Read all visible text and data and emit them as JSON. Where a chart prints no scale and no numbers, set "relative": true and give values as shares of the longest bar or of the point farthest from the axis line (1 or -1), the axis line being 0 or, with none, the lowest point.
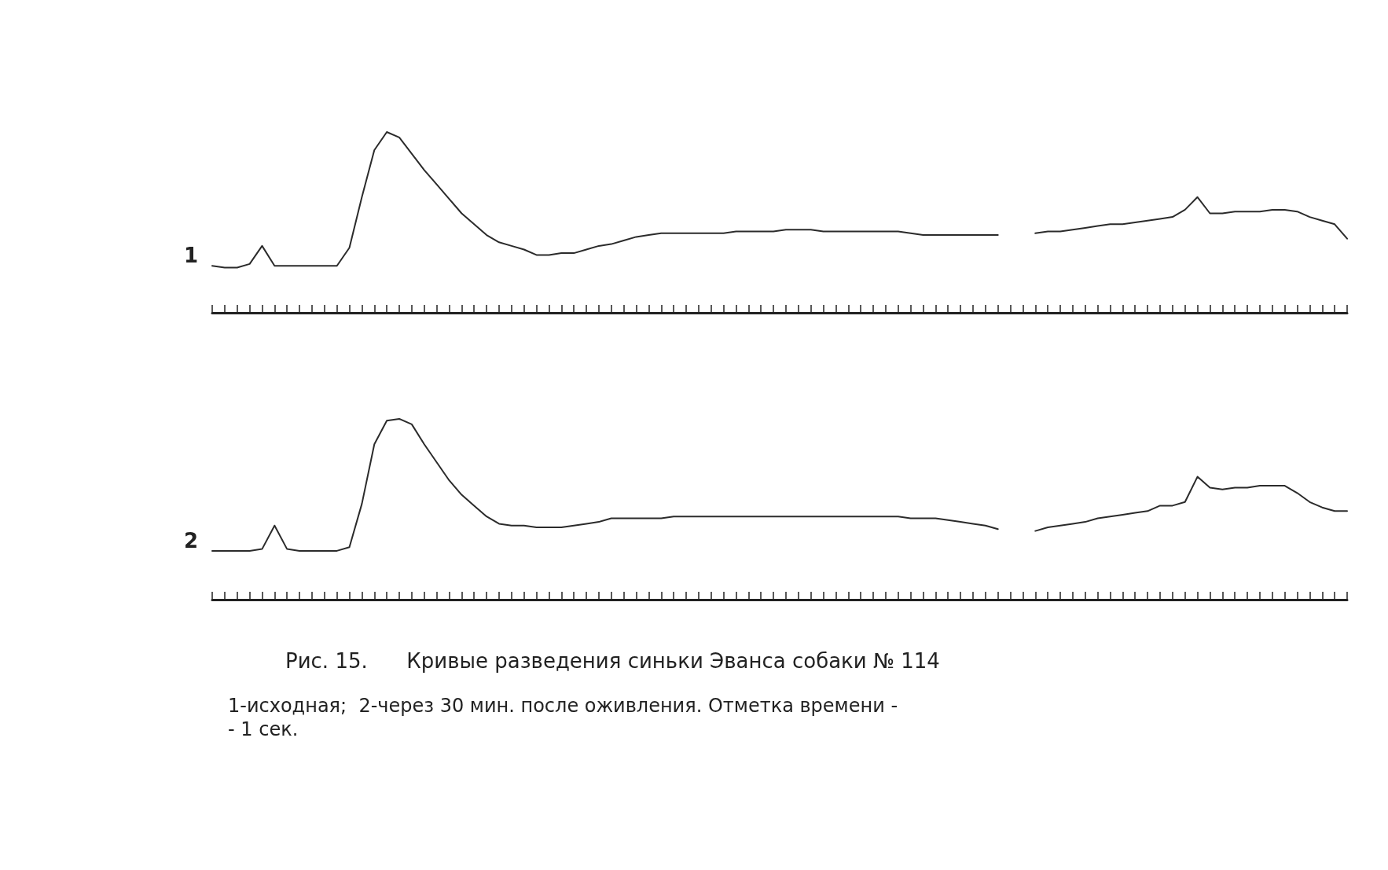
{
  "chart_data": [
    {
      "type": "line",
      "relative": true,
      "marker": "none",
      "line_style": "solid",
      "grid": false,
      "legend": false,
      "categories": [
        null,
        null,
        null,
        null,
        null,
        null,
        null,
        null,
        null,
        null,
        null,
        null,
        null,
        null,
        null,
        null,
        null,
        null,
        null,
        null,
        null,
        null,
        null,
        null,
        null,
        null,
        null,
        null,
        null,
        null,
        null,
        null,
        null,
        null,
        null,
        null,
        null,
        null,
        null,
        null,
        null,
        null,
        null,
        null,
        null,
        null,
        null,
        null,
        null,
        null,
        null,
        null,
        null,
        null,
        null,
        null,
        null,
        null,
        null,
        null,
        null,
        null,
        null,
        null,
        null,
        null,
        null,
        null,
        null,
        null,
        null,
        null,
        null,
        null,
        null,
        null,
        null,
        null,
        null,
        null,
        null,
        null,
        null,
        null,
        null,
        null,
        null,
        null,
        null,
        null,
        null,
        null
      ],
      "series": [
        {
          "name": "1",
          "color": "#2b2b2b",
          "values": [
            0.26,
            0.25,
            0.25,
            0.27,
            0.37,
            0.26,
            0.26,
            0.26,
            0.26,
            0.26,
            0.26,
            0.36,
            0.64,
            0.9,
            1.0,
            0.97,
            0.88,
            0.79,
            0.71,
            0.63,
            0.55,
            0.49,
            0.43,
            0.39,
            0.37,
            0.35,
            0.32,
            0.32,
            0.33,
            0.33,
            0.35,
            0.37,
            0.38,
            0.4,
            0.42,
            0.43,
            0.44,
            0.44,
            0.44,
            0.44,
            0.44,
            0.44,
            0.45,
            0.45,
            0.45,
            0.45,
            0.46,
            0.46,
            0.46,
            0.45,
            0.45,
            0.45,
            0.45,
            0.45,
            0.45,
            0.45,
            0.44,
            0.43,
            0.43,
            0.43,
            0.43,
            0.43,
            0.43,
            0.43,
            null,
            null,
            0.44,
            0.45,
            0.45,
            0.46,
            0.47,
            0.48,
            0.49,
            0.49,
            0.5,
            0.51,
            0.52,
            0.53,
            0.57,
            0.64,
            0.55,
            0.55,
            0.56,
            0.56,
            0.56,
            0.57,
            0.57,
            0.56,
            0.53,
            0.51,
            0.49,
            0.41
          ]
        }
      ]
    },
    {
      "type": "line",
      "relative": true,
      "marker": "none",
      "line_style": "solid",
      "grid": false,
      "legend": false,
      "categories": [
        null,
        null,
        null,
        null,
        null,
        null,
        null,
        null,
        null,
        null,
        null,
        null,
        null,
        null,
        null,
        null,
        null,
        null,
        null,
        null,
        null,
        null,
        null,
        null,
        null,
        null,
        null,
        null,
        null,
        null,
        null,
        null,
        null,
        null,
        null,
        null,
        null,
        null,
        null,
        null,
        null,
        null,
        null,
        null,
        null,
        null,
        null,
        null,
        null,
        null,
        null,
        null,
        null,
        null,
        null,
        null,
        null,
        null,
        null,
        null,
        null,
        null,
        null,
        null,
        null,
        null,
        null,
        null,
        null,
        null,
        null,
        null,
        null,
        null,
        null,
        null,
        null,
        null,
        null,
        null,
        null,
        null,
        null,
        null,
        null,
        null,
        null,
        null,
        null,
        null,
        null,
        null
      ],
      "series": [
        {
          "name": "2",
          "color": "#2b2b2b",
          "values": [
            0.27,
            0.27,
            0.27,
            0.27,
            0.28,
            0.41,
            0.28,
            0.27,
            0.27,
            0.27,
            0.27,
            0.29,
            0.53,
            0.86,
            0.99,
            1.0,
            0.97,
            0.86,
            0.76,
            0.66,
            0.58,
            0.52,
            0.46,
            0.42,
            0.41,
            0.41,
            0.4,
            0.4,
            0.4,
            0.41,
            0.42,
            0.43,
            0.45,
            0.45,
            0.45,
            0.45,
            0.45,
            0.46,
            0.46,
            0.46,
            0.46,
            0.46,
            0.46,
            0.46,
            0.46,
            0.46,
            0.46,
            0.46,
            0.46,
            0.46,
            0.46,
            0.46,
            0.46,
            0.46,
            0.46,
            0.46,
            0.45,
            0.45,
            0.45,
            0.44,
            0.43,
            0.42,
            0.41,
            0.39,
            null,
            null,
            0.38,
            0.4,
            0.41,
            0.42,
            0.43,
            0.45,
            0.46,
            0.47,
            0.48,
            0.49,
            0.52,
            0.52,
            0.54,
            0.68,
            0.62,
            0.61,
            0.62,
            0.62,
            0.63,
            0.63,
            0.63,
            0.59,
            0.54,
            0.51,
            0.49,
            0.49
          ]
        }
      ],
      "annotations": [
        "Рис. 15.      Кривые разведения синьки Эванса собаки № 114",
        "1-исходная;  2-через 30 мин. после оживления. Отметка времени -",
        "- 1 сек."
      ]
    }
  ]
}
